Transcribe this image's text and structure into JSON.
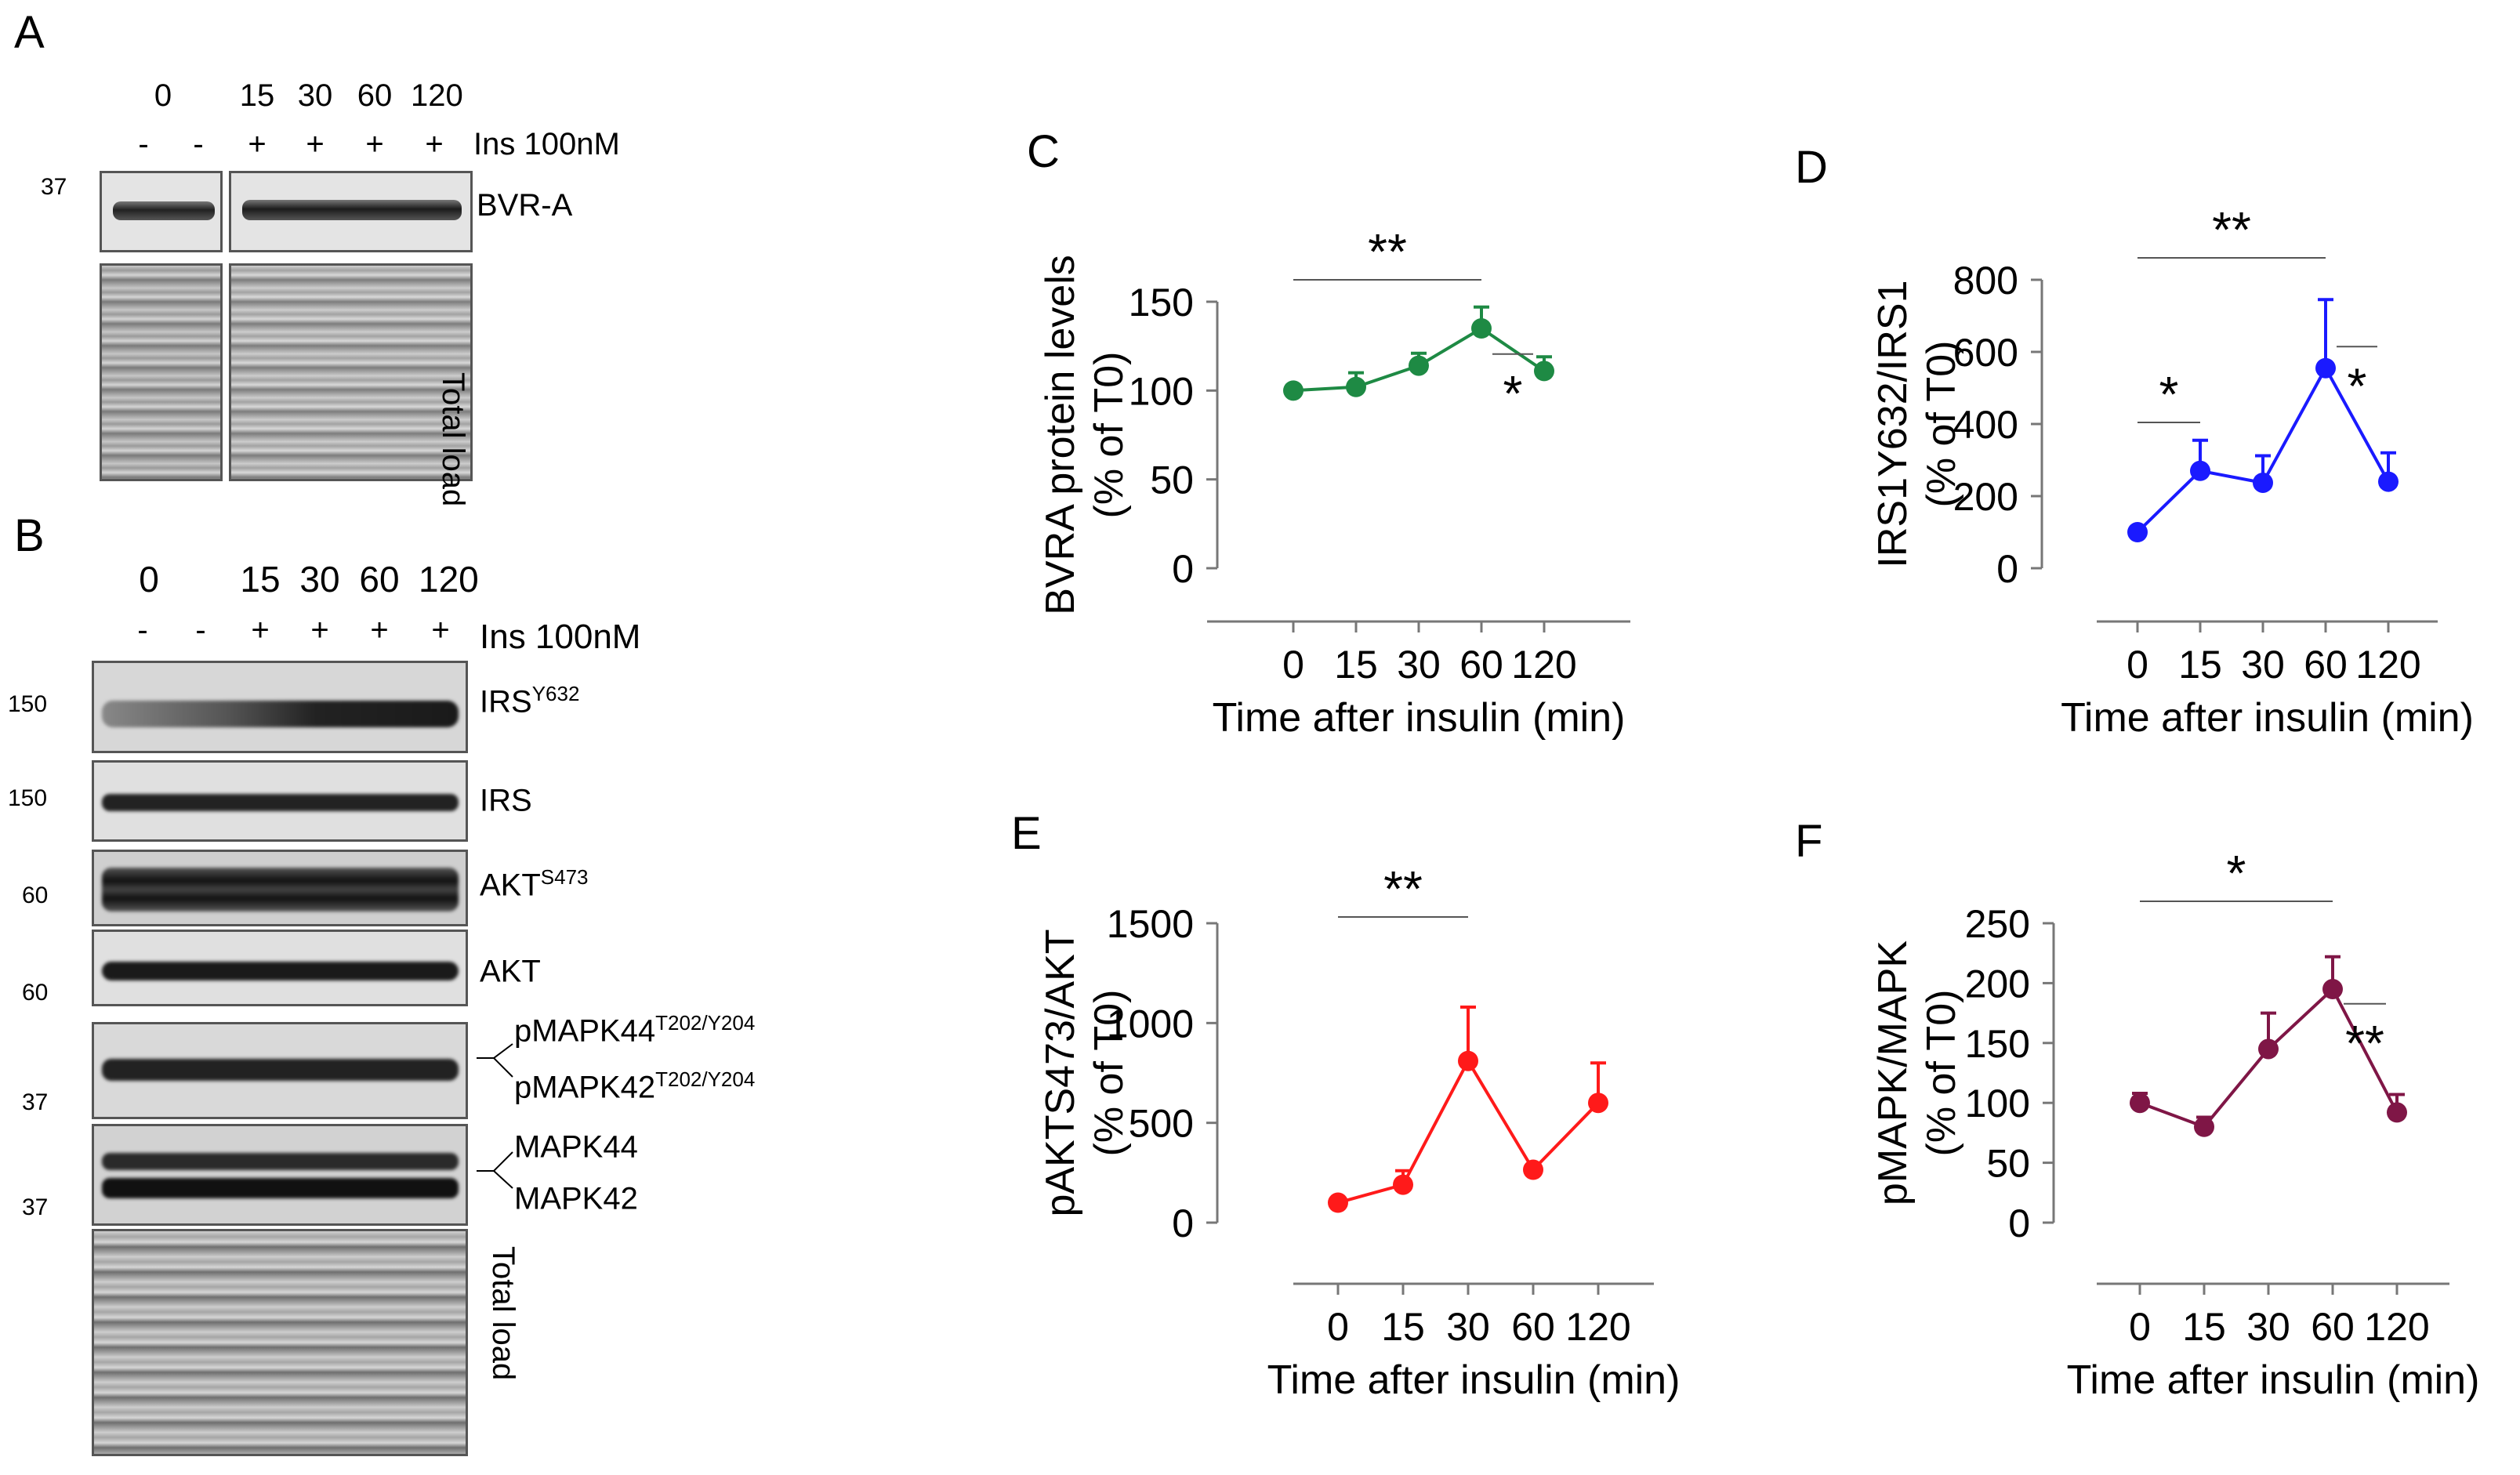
{
  "panel_labels": [
    "A",
    "B",
    "C",
    "D",
    "E",
    "F"
  ],
  "blot_a": {
    "time_labels": [
      "0",
      "15",
      "30",
      "60",
      "120"
    ],
    "treatment": [
      "-",
      "-",
      "+",
      "+",
      "+",
      "+"
    ],
    "treatment_label": "Ins 100nM",
    "mw_marker": "37",
    "bands": [
      {
        "name": "BVR-A"
      },
      {
        "name": "Total load"
      }
    ]
  },
  "blot_b": {
    "time_labels": [
      "0",
      "15",
      "30",
      "60",
      "120"
    ],
    "treatment": [
      "-",
      "-",
      "+",
      "+",
      "+",
      "+"
    ],
    "treatment_label": "Ins 100nM",
    "mw_markers": [
      "150",
      "150",
      "60",
      "60",
      "37",
      "37"
    ],
    "bands": [
      {
        "base": "IRS",
        "sup": "Y632"
      },
      {
        "base": "IRS",
        "sup": ""
      },
      {
        "base": "AKT",
        "sup": "S473"
      },
      {
        "base": "AKT",
        "sup": ""
      },
      {
        "base": "pMAPK44",
        "sup": "T202/Y204"
      },
      {
        "base": "pMAPK42",
        "sup": "T202/Y204"
      },
      {
        "base": "MAPK44",
        "sup": ""
      },
      {
        "base": "MAPK42",
        "sup": ""
      },
      {
        "base": "Total load",
        "sup": ""
      }
    ]
  },
  "colors": {
    "C": "#1e8a44",
    "D": "#1a1aff",
    "E": "#ff1a1a",
    "F": "#7f1646"
  },
  "chart_data": [
    {
      "panel": "C",
      "type": "line",
      "categories": [
        "0",
        "15",
        "30",
        "60",
        "120"
      ],
      "values": [
        100,
        102,
        114,
        135,
        111
      ],
      "errors": [
        0,
        8,
        7,
        12,
        8
      ],
      "ylim": [
        0,
        150
      ],
      "yticks": [
        0,
        50,
        100,
        150
      ],
      "ylabel_lines": [
        "BVRA protein levels",
        "(% of T0)"
      ],
      "xlabel": "Time after insulin (min)",
      "significance": [
        {
          "label": "**",
          "from": 0,
          "to": 3,
          "side": "above"
        },
        {
          "label": "*",
          "from": 3,
          "to": 4,
          "side": "below"
        }
      ]
    },
    {
      "panel": "D",
      "type": "line",
      "categories": [
        "0",
        "15",
        "30",
        "60",
        "120"
      ],
      "values": [
        100,
        270,
        237,
        555,
        240
      ],
      "errors": [
        0,
        85,
        75,
        190,
        80
      ],
      "ylim": [
        0,
        800
      ],
      "yticks": [
        0,
        200,
        400,
        600,
        800
      ],
      "ylabel_lines": [
        "IRS1Y632/IRS1",
        "(% of T0)"
      ],
      "xlabel": "Time after insulin (min)",
      "significance": [
        {
          "label": "**",
          "from": 0,
          "to": 3,
          "side": "above"
        },
        {
          "label": "*",
          "from": 0,
          "to": 1,
          "side": "above-low"
        },
        {
          "label": "*",
          "from": 3,
          "to": 4,
          "side": "below"
        }
      ]
    },
    {
      "panel": "E",
      "type": "line",
      "categories": [
        "0",
        "15",
        "30",
        "60",
        "120"
      ],
      "values": [
        100,
        190,
        810,
        265,
        600
      ],
      "errors": [
        0,
        70,
        270,
        0,
        200
      ],
      "ylim": [
        0,
        1500
      ],
      "yticks": [
        0,
        500,
        1000,
        1500
      ],
      "ylabel_lines": [
        "pAKTS473/AKT",
        "(% of T0)"
      ],
      "xlabel": "Time after insulin (min)",
      "significance": [
        {
          "label": "**",
          "from": 0,
          "to": 2,
          "side": "above"
        }
      ]
    },
    {
      "panel": "F",
      "type": "line",
      "categories": [
        "0",
        "15",
        "30",
        "60",
        "120"
      ],
      "values": [
        100,
        80,
        145,
        195,
        92
      ],
      "errors": [
        8,
        8,
        30,
        27,
        15
      ],
      "ylim": [
        0,
        250
      ],
      "yticks": [
        0,
        50,
        100,
        150,
        200,
        250
      ],
      "ylabel_lines": [
        "pMAPK/MAPK",
        "(% of T0)"
      ],
      "xlabel": "Time after insulin (min)",
      "significance": [
        {
          "label": "*",
          "from": 0,
          "to": 3,
          "side": "above"
        },
        {
          "label": "**",
          "from": 3,
          "to": 4,
          "side": "below"
        }
      ]
    }
  ]
}
